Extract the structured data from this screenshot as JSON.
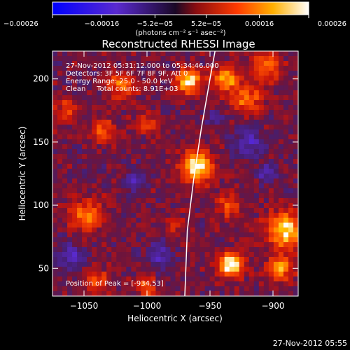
{
  "chart_data": {
    "type": "heatmap",
    "title": "Reconstructed RHESSI Image",
    "xlabel": "Heliocentric X (arcsec)",
    "ylabel": "Heliocentric Y (arcsec)",
    "xlim": [
      -1075,
      -880
    ],
    "ylim": [
      28,
      222
    ],
    "x_ticks": [
      -1050,
      -1000,
      -950,
      -900
    ],
    "x_tick_labels": [
      "−1050",
      "−1000",
      "−950",
      "−900"
    ],
    "y_ticks": [
      50,
      100,
      150,
      200
    ],
    "y_tick_labels": [
      "50",
      "100",
      "150",
      "200"
    ],
    "colorbar": {
      "range": [
        -0.00026,
        0.00026
      ],
      "ticks": [
        -0.00026,
        -0.00016,
        -5.2e-05,
        5.2e-05,
        0.00016,
        0.00026
      ],
      "tick_labels": [
        "−0.00026",
        "−0.00016",
        "−5.2e−05",
        "5.2e−05",
        "0.00016",
        "0.00026"
      ],
      "unit_label": "(photons cm⁻² s⁻¹ asec⁻²)"
    },
    "annotations": [
      "27-Nov-2012 05:31:12.000 to 05:34:46.000",
      "Detectors: 3F 5F 6F 7F 8F 9F, Att 0",
      "Energy Range: 25.0 - 50.0 keV",
      "Clean     Total counts: 8.91E+03"
    ],
    "peak_label": "Position of Peak = [-934,53]",
    "timestamp": "27-Nov-2012 05:55",
    "sources": [
      {
        "x": -960,
        "y": 130,
        "r": 12,
        "v": 0.00026
      },
      {
        "x": -934,
        "y": 53,
        "r": 10,
        "v": 0.00026
      },
      {
        "x": -967,
        "y": 198,
        "r": 10,
        "v": 0.00022
      },
      {
        "x": -938,
        "y": 200,
        "r": 10,
        "v": 0.00018
      },
      {
        "x": -920,
        "y": 185,
        "r": 12,
        "v": 0.00014
      },
      {
        "x": -905,
        "y": 210,
        "r": 11,
        "v": 0.00016
      },
      {
        "x": -1048,
        "y": 92,
        "r": 13,
        "v": 0.00015
      },
      {
        "x": -1035,
        "y": 160,
        "r": 10,
        "v": 0.00013
      },
      {
        "x": -1020,
        "y": 195,
        "r": 11,
        "v": 0.00014
      },
      {
        "x": -1000,
        "y": 165,
        "r": 9,
        "v": 0.0001
      },
      {
        "x": -1040,
        "y": 40,
        "r": 9,
        "v": 0.00013
      },
      {
        "x": -1000,
        "y": 35,
        "r": 8,
        "v": 0.00012
      },
      {
        "x": -935,
        "y": 100,
        "r": 10,
        "v": 0.00012
      },
      {
        "x": -890,
        "y": 80,
        "r": 15,
        "v": 0.00022
      },
      {
        "x": -895,
        "y": 50,
        "r": 10,
        "v": 0.00018
      },
      {
        "x": -978,
        "y": 85,
        "r": 8,
        "v": 8e-05
      },
      {
        "x": -1065,
        "y": 175,
        "r": 10,
        "v": 9e-05
      },
      {
        "x": -1010,
        "y": 120,
        "r": 8,
        "v": -0.00012
      },
      {
        "x": -1060,
        "y": 60,
        "r": 10,
        "v": -0.00013
      },
      {
        "x": -990,
        "y": 60,
        "r": 9,
        "v": -0.00012
      },
      {
        "x": -920,
        "y": 150,
        "r": 12,
        "v": -0.00011
      },
      {
        "x": -905,
        "y": 125,
        "r": 8,
        "v": -9e-05
      },
      {
        "x": -945,
        "y": 170,
        "r": 7,
        "v": -7e-05
      }
    ],
    "limb_curve": [
      [
        -970,
        28
      ],
      [
        -968,
        80
      ],
      [
        -963,
        120
      ],
      [
        -957,
        160
      ],
      [
        -950,
        200
      ],
      [
        -946,
        222
      ]
    ]
  },
  "colors": {
    "background": "#000000",
    "text": "#ffffff",
    "limb": "#ffffff"
  }
}
